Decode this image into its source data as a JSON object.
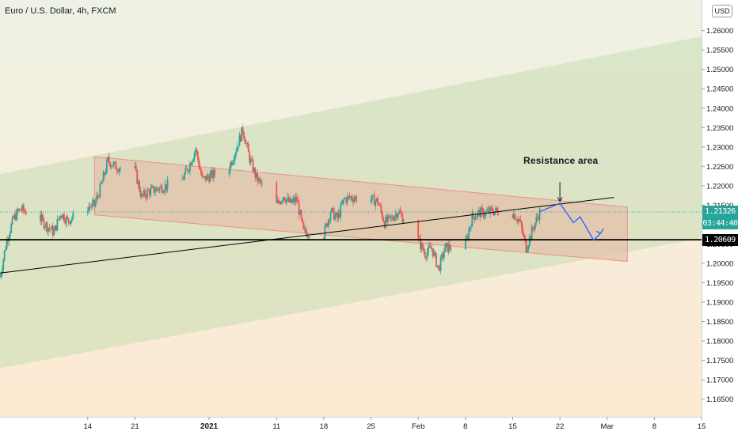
{
  "header": {
    "title": "Euro / U.S. Dollar, 4h, FXCM",
    "currency_badge": "USD"
  },
  "annotation": {
    "text": "Resistance area"
  },
  "price_tags": {
    "last_price": "1.21326",
    "countdown": "03:44:40",
    "level_price": "1.20609"
  },
  "colors": {
    "up_candle": "#26a69a",
    "down_candle": "#ef5350",
    "bg_top": "#eef2e4",
    "bg_bottom": "#fde9d2",
    "outer_channel": "#c7ddb3",
    "inner_channel": "#e2bfa8",
    "inner_channel_border": "#ef8e8a",
    "trendline": "#000000",
    "projection": "#2962ff",
    "last_price_tag": "#26a69a",
    "level_tag": "#000000"
  },
  "chart_data": {
    "type": "candlestick",
    "title": "Euro / U.S. Dollar, 4h, FXCM",
    "yaxis": {
      "position": "right",
      "range": [
        1.1625,
        1.264
      ],
      "tick_labels": [
        "1.26000",
        "1.25500",
        "1.25000",
        "1.24500",
        "1.24000",
        "1.23500",
        "1.23000",
        "1.22500",
        "1.22000",
        "1.21500",
        "1.21000",
        "1.20500",
        "1.20000",
        "1.19500",
        "1.19000",
        "1.18500",
        "1.18000",
        "1.17500",
        "1.17000",
        "1.16500"
      ]
    },
    "xaxis": {
      "tick_labels": [
        {
          "label": "14"
        },
        {
          "label": "21"
        },
        {
          "label": "2021"
        },
        {
          "label": "11"
        },
        {
          "label": "18"
        },
        {
          "label": "25"
        },
        {
          "label": "Feb"
        },
        {
          "label": "8"
        },
        {
          "label": "15"
        },
        {
          "label": "22"
        },
        {
          "label": "Mar"
        },
        {
          "label": "8"
        },
        {
          "label": "15"
        }
      ],
      "start": "2020-12-01",
      "end": "2021-03-15"
    },
    "grid": false,
    "price_path": [
      [
        "2020-12-01",
        1.1965
      ],
      [
        "2020-12-02",
        1.206
      ],
      [
        "2020-12-03",
        1.2115
      ],
      [
        "2020-12-04",
        1.214
      ],
      [
        "2020-12-07",
        1.2115
      ],
      [
        "2020-12-08",
        1.2095
      ],
      [
        "2020-12-09",
        1.208
      ],
      [
        "2020-12-10",
        1.213
      ],
      [
        "2020-12-11",
        1.211
      ],
      [
        "2020-12-14",
        1.2145
      ],
      [
        "2020-12-15",
        1.215
      ],
      [
        "2020-12-16",
        1.22
      ],
      [
        "2020-12-17",
        1.2265
      ],
      [
        "2020-12-18",
        1.225
      ],
      [
        "2020-12-21",
        1.224
      ],
      [
        "2020-12-22",
        1.217
      ],
      [
        "2020-12-23",
        1.2185
      ],
      [
        "2020-12-24",
        1.219
      ],
      [
        "2020-12-28",
        1.2215
      ],
      [
        "2020-12-29",
        1.225
      ],
      [
        "2020-12-30",
        1.2295
      ],
      [
        "2020-12-31",
        1.2215
      ],
      [
        "2021-01-04",
        1.225
      ],
      [
        "2021-01-05",
        1.2295
      ],
      [
        "2021-01-06",
        1.2345
      ],
      [
        "2021-01-07",
        1.227
      ],
      [
        "2021-01-08",
        1.222
      ],
      [
        "2021-01-11",
        1.215
      ],
      [
        "2021-01-12",
        1.2175
      ],
      [
        "2021-01-13",
        1.2155
      ],
      [
        "2021-01-14",
        1.2165
      ],
      [
        "2021-01-15",
        1.208
      ],
      [
        "2021-01-18",
        1.2075
      ],
      [
        "2021-01-19",
        1.2135
      ],
      [
        "2021-01-20",
        1.2115
      ],
      [
        "2021-01-21",
        1.2165
      ],
      [
        "2021-01-22",
        1.217
      ],
      [
        "2021-01-25",
        1.2165
      ],
      [
        "2021-01-26",
        1.216
      ],
      [
        "2021-01-27",
        1.2105
      ],
      [
        "2021-01-28",
        1.2115
      ],
      [
        "2021-01-29",
        1.2135
      ],
      [
        "2021-02-01",
        1.206
      ],
      [
        "2021-02-02",
        1.2025
      ],
      [
        "2021-02-03",
        1.204
      ],
      [
        "2021-02-04",
        1.1985
      ],
      [
        "2021-02-05",
        1.204
      ],
      [
        "2021-02-08",
        1.205
      ],
      [
        "2021-02-09",
        1.212
      ],
      [
        "2021-02-10",
        1.213
      ],
      [
        "2021-02-11",
        1.213
      ],
      [
        "2021-02-12",
        1.2135
      ],
      [
        "2021-02-15",
        1.213
      ],
      [
        "2021-02-16",
        1.211
      ],
      [
        "2021-02-17",
        1.204
      ],
      [
        "2021-02-18",
        1.209
      ],
      [
        "2021-02-19",
        1.2133
      ]
    ],
    "outer_channel": {
      "upper": [
        [
          "2020-12-01",
          1.223
        ],
        [
          "2021-03-15",
          1.2585
        ]
      ],
      "lower": [
        [
          "2020-12-01",
          1.173
        ],
        [
          "2021-03-15",
          1.2065
        ]
      ]
    },
    "inner_channel": {
      "upper": [
        [
          "2020-12-15",
          1.2275
        ],
        [
          "2021-03-04",
          1.2145
        ]
      ],
      "lower": [
        [
          "2020-12-15",
          1.2125
        ],
        [
          "2021-03-04",
          1.2005
        ]
      ]
    },
    "trendline": [
      [
        "2020-12-01",
        1.1975
      ],
      [
        "2021-03-02",
        1.217
      ]
    ],
    "horizontal_level": 1.20609,
    "last_price_line": 1.21326,
    "projection": [
      [
        "2021-02-19",
        1.2133
      ],
      [
        "2021-02-22",
        1.2155
      ],
      [
        "2021-02-24",
        1.2105
      ],
      [
        "2021-02-25",
        1.212
      ],
      [
        "2021-02-27",
        1.206
      ],
      [
        "2021-02-28",
        1.2077
      ]
    ],
    "annotation_arrow": {
      "date": "2021-02-22",
      "from": 1.221,
      "to": 1.216
    }
  }
}
